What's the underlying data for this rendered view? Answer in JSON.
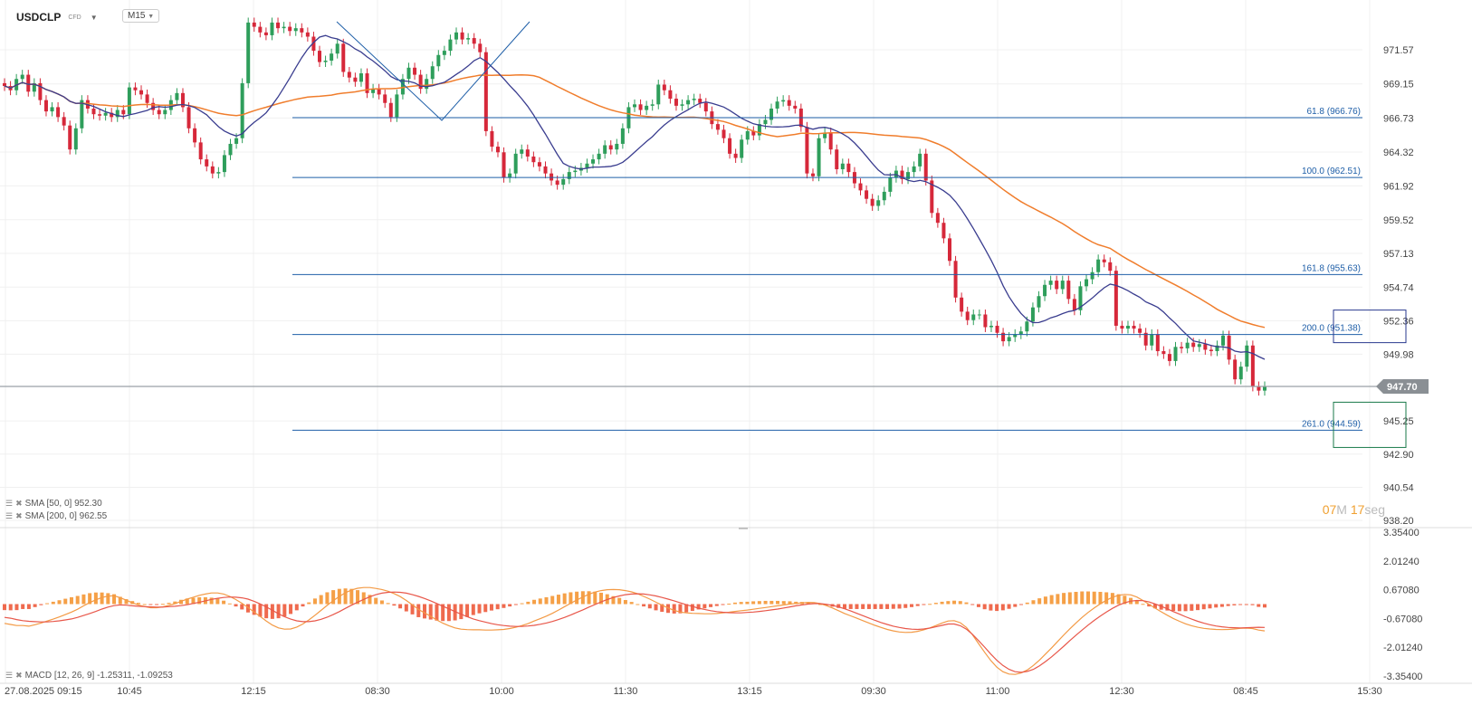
{
  "header": {
    "symbol": "USDCLP",
    "instrument_type": "CFD",
    "timeframe": "M15"
  },
  "indicators": {
    "sma50": {
      "label": "SMA [50, 0] 952.30",
      "color": "#3a3d8f"
    },
    "sma200": {
      "label": "SMA [200, 0] 962.55",
      "color": "#f07d2c"
    },
    "macd": {
      "label": "MACD [12, 26, 9] -1.25311, -1.09253"
    }
  },
  "timer": {
    "minutes": "07",
    "min_unit": "M",
    "seconds": "17",
    "sec_unit": "seg"
  },
  "chart_data": [
    {
      "type": "candlestick",
      "price_axis_ticks": [
        "971.57",
        "969.15",
        "966.73",
        "964.32",
        "961.92",
        "959.52",
        "957.13",
        "954.74",
        "952.36",
        "949.98",
        "947.70",
        "945.25",
        "942.90",
        "940.54",
        "938.20"
      ],
      "ylim": [
        938.2,
        971.57
      ],
      "current_price": "947.70",
      "time_axis_labels": [
        "27.08.2025  09:15",
        "10:45",
        "12:15",
        "08:30",
        "10:00",
        "11:30",
        "13:15",
        "09:30",
        "11:00",
        "12:30",
        "08:45",
        "15:30"
      ],
      "fibonacci_levels": [
        {
          "label": "61.8 (966.76)",
          "value": 966.76
        },
        {
          "label": "100.0 (962.51)",
          "value": 962.51
        },
        {
          "label": "161.8 (955.63)",
          "value": 955.63
        },
        {
          "label": "200.0 (951.38)",
          "value": 951.38
        },
        {
          "label": "261.0 (944.59)",
          "value": 944.59
        }
      ],
      "closes": [
        969.0,
        968.7,
        969.5,
        969.8,
        968.6,
        969.2,
        968.0,
        967.2,
        967.5,
        966.8,
        966.2,
        964.5,
        966.0,
        968.0,
        967.4,
        967.0,
        966.9,
        967.1,
        966.8,
        967.3,
        967.0,
        968.9,
        968.7,
        968.4,
        967.8,
        967.3,
        967.0,
        967.3,
        968.0,
        968.5,
        967.5,
        966.0,
        965.0,
        963.8,
        963.3,
        962.8,
        962.9,
        964.1,
        964.9,
        965.3,
        969.2,
        973.5,
        973.2,
        972.8,
        972.6,
        973.5,
        973.1,
        973.2,
        972.9,
        973.1,
        972.8,
        972.5,
        971.5,
        970.7,
        970.8,
        971.3,
        972.0,
        970.0,
        969.6,
        969.3,
        969.9,
        968.5,
        968.8,
        968.4,
        967.8,
        966.8,
        968.4,
        969.5,
        970.3,
        969.8,
        968.8,
        969.5,
        970.4,
        971.2,
        971.5,
        972.3,
        972.8,
        972.3,
        972.4,
        972.0,
        971.4,
        965.8,
        964.7,
        964.3,
        962.5,
        962.8,
        964.2,
        964.5,
        964.0,
        963.6,
        963.3,
        962.8,
        962.3,
        962.0,
        962.4,
        962.9,
        963.0,
        963.2,
        963.5,
        963.8,
        964.2,
        964.8,
        964.5,
        964.9,
        966.0,
        967.5,
        967.7,
        967.3,
        967.6,
        967.7,
        969.1,
        968.7,
        968.1,
        967.6,
        967.7,
        968.0,
        968.1,
        967.8,
        967.2,
        966.3,
        965.9,
        965.3,
        964.2,
        963.9,
        965.2,
        965.8,
        965.5,
        966.3,
        966.6,
        967.4,
        967.9,
        968.0,
        967.6,
        967.4,
        966.1,
        962.8,
        962.6,
        965.3,
        965.7,
        964.5,
        963.1,
        963.5,
        962.9,
        962.1,
        961.6,
        961.0,
        960.5,
        960.9,
        961.5,
        962.5,
        963.0,
        962.4,
        962.9,
        963.3,
        964.2,
        962.3,
        960.0,
        959.3,
        958.2,
        956.6,
        954.0,
        953.0,
        952.4,
        952.8,
        952.8,
        951.9,
        952.0,
        951.5,
        950.9,
        951.2,
        951.4,
        951.6,
        952.3,
        953.3,
        954.1,
        954.9,
        955.2,
        954.6,
        955.2,
        953.9,
        953.1,
        954.8,
        955.3,
        955.8,
        956.7,
        956.5,
        955.9,
        952.0,
        951.8,
        952.0,
        951.8,
        951.5,
        950.6,
        951.4,
        950.2,
        950.0,
        949.5,
        950.5,
        950.4,
        950.8,
        950.5,
        950.7,
        950.3,
        950.2,
        950.6,
        951.3,
        949.6,
        948.2,
        949.1,
        950.6,
        947.7,
        947.4,
        947.7
      ]
    },
    {
      "type": "macd",
      "ylim": [
        -3.354,
        3.354
      ],
      "axis_ticks": [
        "3.35400",
        "2.01240",
        "0.67080",
        "-0.67080",
        "-2.01240",
        "-3.35400"
      ],
      "macd_line": [
        -0.9,
        -0.95,
        -1.0,
        -1.0,
        -1.03,
        -0.96,
        -0.88,
        -0.79,
        -0.7,
        -0.6,
        -0.49,
        -0.37,
        -0.24,
        -0.08,
        0.07,
        0.2,
        0.31,
        0.37,
        0.39,
        0.3,
        0.18,
        0.06,
        -0.04,
        -0.12,
        -0.17,
        -0.17,
        -0.13,
        -0.06,
        0.02,
        0.13,
        0.23,
        0.32,
        0.41,
        0.47,
        0.52,
        0.52,
        0.47,
        0.36,
        0.21,
        0.04,
        -0.16,
        -0.37,
        -0.58,
        -0.79,
        -0.98,
        -1.11,
        -1.17,
        -1.16,
        -1.07,
        -0.93,
        -0.74,
        -0.52,
        -0.29,
        -0.06,
        0.16,
        0.36,
        0.53,
        0.66,
        0.74,
        0.77,
        0.77,
        0.73,
        0.68,
        0.6,
        0.49,
        0.35,
        0.17,
        -0.04,
        -0.25,
        -0.41,
        -0.57,
        -0.74,
        -0.89,
        -1.01,
        -1.11,
        -1.17,
        -1.19,
        -1.2,
        -1.2,
        -1.21,
        -1.21,
        -1.2,
        -1.18,
        -1.14,
        -1.08,
        -1.0,
        -0.91,
        -0.79,
        -0.68,
        -0.56,
        -0.43,
        -0.28,
        -0.12,
        0.04,
        0.19,
        0.33,
        0.46,
        0.56,
        0.63,
        0.67,
        0.68,
        0.67,
        0.63,
        0.57,
        0.48,
        0.36,
        0.23,
        0.09,
        -0.05,
        -0.18,
        -0.29,
        -0.37,
        -0.41,
        -0.43,
        -0.44,
        -0.45,
        -0.45,
        -0.44,
        -0.41,
        -0.38,
        -0.34,
        -0.31,
        -0.28,
        -0.24,
        -0.2,
        -0.16,
        -0.12,
        -0.08,
        -0.04,
        0.0,
        0.03,
        0.06,
        0.08,
        0.07,
        0.02,
        -0.07,
        -0.18,
        -0.31,
        -0.44,
        -0.55,
        -0.66,
        -0.77,
        -0.88,
        -0.99,
        -1.09,
        -1.18,
        -1.25,
        -1.3,
        -1.32,
        -1.31,
        -1.27,
        -1.2,
        -1.11,
        -1.0,
        -0.88,
        -0.79,
        -0.77,
        -0.87,
        -1.09,
        -1.43,
        -1.84,
        -2.25,
        -2.63,
        -2.94,
        -3.15,
        -3.26,
        -3.28,
        -3.21,
        -3.07,
        -2.86,
        -2.61,
        -2.33,
        -2.04,
        -1.74,
        -1.44,
        -1.15,
        -0.88,
        -0.62,
        -0.39,
        -0.18,
        0.01,
        0.18,
        0.32,
        0.41,
        0.45,
        0.43,
        0.33,
        0.17,
        -0.01,
        -0.19,
        -0.36,
        -0.52,
        -0.67,
        -0.8,
        -0.92,
        -1.01,
        -1.08,
        -1.13,
        -1.16,
        -1.18,
        -1.19,
        -1.18,
        -1.16,
        -1.13,
        -1.12,
        -1.14,
        -1.21,
        -1.25
      ],
      "signal_line": [
        -0.62,
        -0.66,
        -0.72,
        -0.77,
        -0.8,
        -0.82,
        -0.83,
        -0.83,
        -0.81,
        -0.78,
        -0.74,
        -0.69,
        -0.62,
        -0.53,
        -0.44,
        -0.34,
        -0.23,
        -0.14,
        -0.07,
        -0.04,
        -0.05,
        -0.08,
        -0.1,
        -0.12,
        -0.13,
        -0.14,
        -0.14,
        -0.12,
        -0.1,
        -0.07,
        -0.03,
        0.03,
        0.09,
        0.15,
        0.22,
        0.27,
        0.31,
        0.33,
        0.32,
        0.29,
        0.23,
        0.13,
        0.01,
        -0.13,
        -0.29,
        -0.45,
        -0.59,
        -0.7,
        -0.78,
        -0.82,
        -0.82,
        -0.78,
        -0.71,
        -0.61,
        -0.49,
        -0.35,
        -0.2,
        -0.05,
        0.09,
        0.22,
        0.34,
        0.44,
        0.51,
        0.55,
        0.56,
        0.55,
        0.51,
        0.44,
        0.36,
        0.26,
        0.15,
        0.03,
        -0.1,
        -0.22,
        -0.35,
        -0.47,
        -0.59,
        -0.69,
        -0.77,
        -0.84,
        -0.91,
        -0.96,
        -1.0,
        -1.03,
        -1.04,
        -1.04,
        -1.02,
        -0.99,
        -0.94,
        -0.88,
        -0.81,
        -0.72,
        -0.62,
        -0.51,
        -0.39,
        -0.27,
        -0.14,
        -0.02,
        0.1,
        0.21,
        0.31,
        0.38,
        0.44,
        0.47,
        0.48,
        0.47,
        0.43,
        0.38,
        0.31,
        0.23,
        0.15,
        0.06,
        -0.03,
        -0.11,
        -0.19,
        -0.25,
        -0.31,
        -0.35,
        -0.38,
        -0.4,
        -0.41,
        -0.41,
        -0.39,
        -0.37,
        -0.34,
        -0.31,
        -0.27,
        -0.23,
        -0.18,
        -0.13,
        -0.08,
        -0.04,
        0.0,
        0.02,
        0.02,
        -0.01,
        -0.06,
        -0.13,
        -0.22,
        -0.32,
        -0.43,
        -0.54,
        -0.65,
        -0.76,
        -0.86,
        -0.95,
        -1.03,
        -1.09,
        -1.14,
        -1.17,
        -1.18,
        -1.16,
        -1.12,
        -1.06,
        -0.99,
        -0.93,
        -0.93,
        -1.01,
        -1.17,
        -1.41,
        -1.7,
        -2.01,
        -2.33,
        -2.62,
        -2.86,
        -3.04,
        -3.15,
        -3.18,
        -3.14,
        -3.04,
        -2.88,
        -2.68,
        -2.46,
        -2.21,
        -1.96,
        -1.7,
        -1.45,
        -1.21,
        -0.98,
        -0.76,
        -0.56,
        -0.37,
        -0.2,
        -0.05,
        0.06,
        0.14,
        0.17,
        0.16,
        0.1,
        0.01,
        -0.1,
        -0.22,
        -0.35,
        -0.47,
        -0.59,
        -0.7,
        -0.8,
        -0.89,
        -0.96,
        -1.02,
        -1.06,
        -1.09,
        -1.1,
        -1.11,
        -1.1,
        -1.09,
        -1.08,
        -1.09
      ]
    }
  ]
}
